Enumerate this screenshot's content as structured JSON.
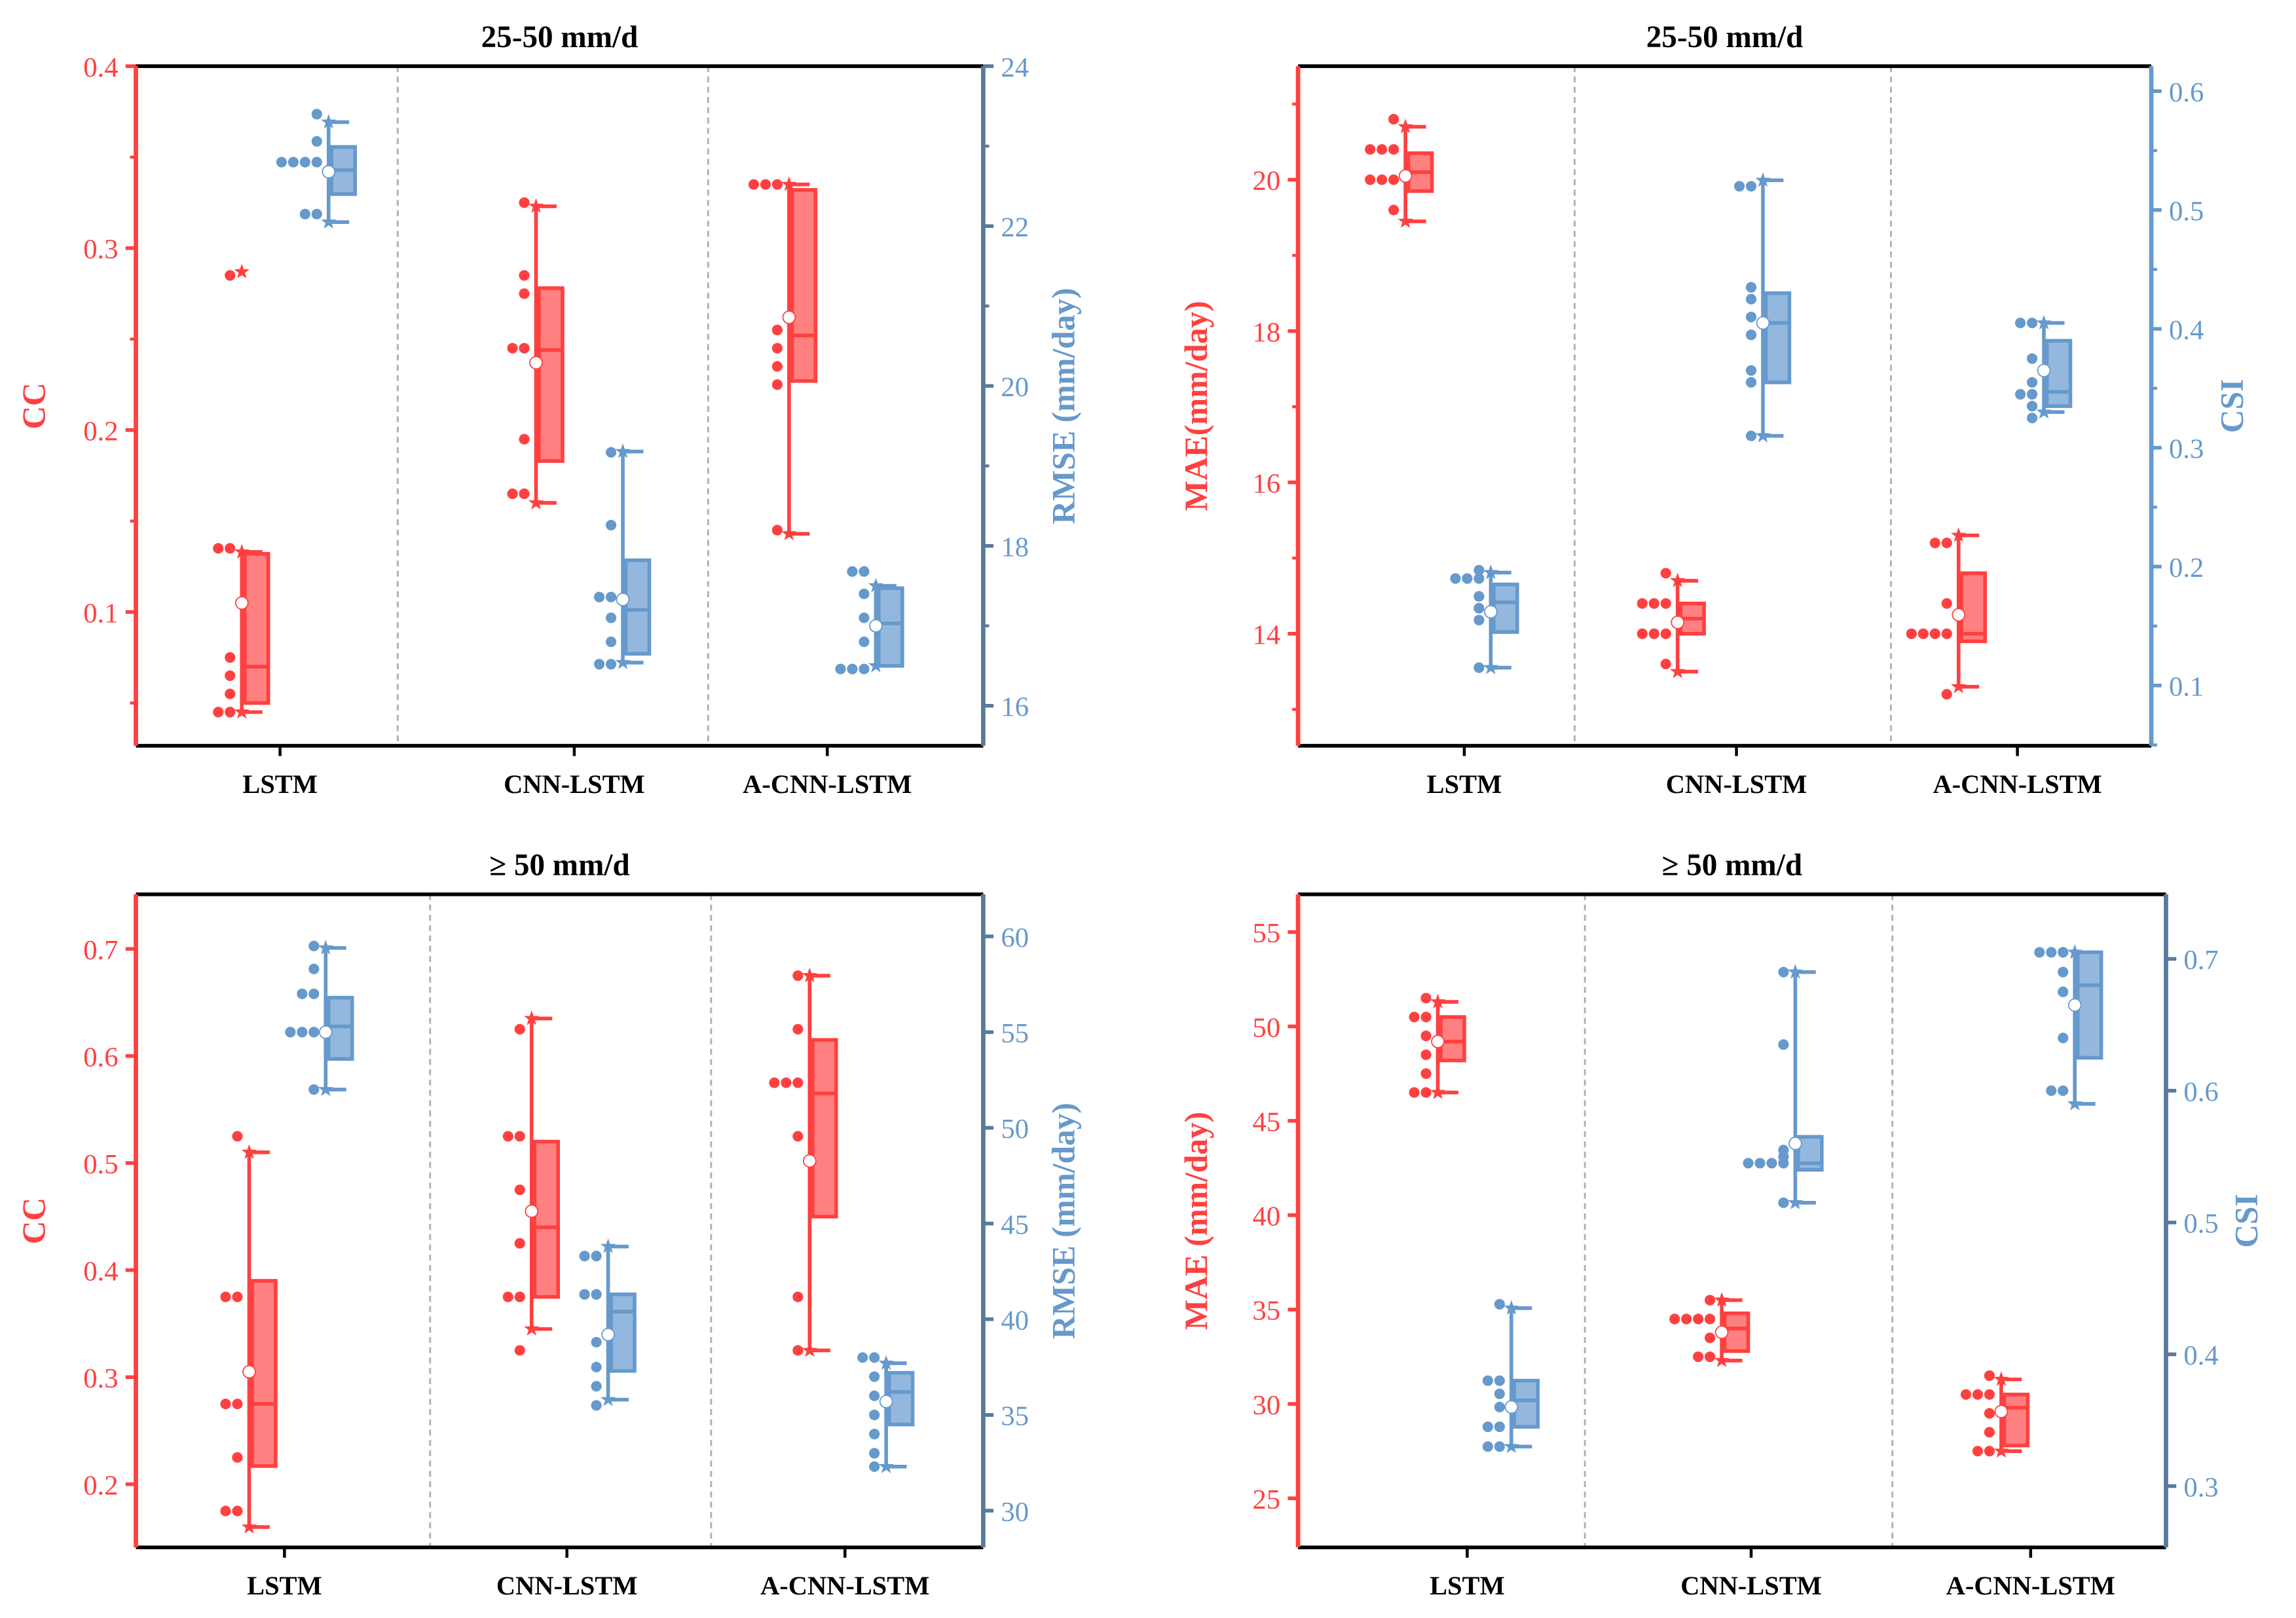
{
  "colors": {
    "red": "#ff4040",
    "red_fill": "#ff8080",
    "blue": "#6699cc",
    "blue_fill": "#94b8dd",
    "right_axis": "#5b7a99"
  },
  "chart_data": [
    {
      "type": "box",
      "title": "25-50 mm/d",
      "categories": [
        "LSTM",
        "CNN-LSTM",
        "A-CNN-LSTM"
      ],
      "left": {
        "label": "CC",
        "ylim": [
          0.0265,
          0.4
        ],
        "ticks": [
          "0.1",
          "0.2",
          "0.3",
          "0.4"
        ],
        "minor_step": 0.05,
        "series": [
          {
            "min": 0.045,
            "q1": 0.05,
            "median": 0.07,
            "q3": 0.132,
            "max": 0.133,
            "mean": 0.105,
            "outliers": [
              0.287
            ],
            "points": [
              0.285,
              0.135,
              0.135,
              0.075,
              0.065,
              0.055,
              0.045,
              0.045
            ]
          },
          {
            "min": 0.16,
            "q1": 0.183,
            "median": 0.244,
            "q3": 0.278,
            "max": 0.323,
            "mean": 0.237,
            "outliers": [],
            "points": [
              0.325,
              0.285,
              0.275,
              0.245,
              0.245,
              0.195,
              0.165,
              0.165
            ]
          },
          {
            "min": 0.143,
            "q1": 0.227,
            "median": 0.252,
            "q3": 0.332,
            "max": 0.335,
            "mean": 0.262,
            "outliers": [],
            "points": [
              0.335,
              0.335,
              0.335,
              0.255,
              0.245,
              0.235,
              0.225,
              0.145
            ]
          }
        ]
      },
      "right": {
        "label": "RMSE (mm/day)",
        "ylim": [
          15.5,
          24
        ],
        "ticks": [
          "16",
          "18",
          "20",
          "22",
          "24"
        ],
        "minor_step": 1,
        "series": [
          {
            "min": 22.05,
            "q1": 22.4,
            "median": 22.7,
            "q3": 22.99,
            "max": 23.3,
            "mean": 22.68,
            "outliers": [],
            "points": [
              23.4,
              23.06,
              22.8,
              22.8,
              22.8,
              22.8,
              22.15,
              22.15
            ]
          },
          {
            "min": 16.54,
            "q1": 16.65,
            "median": 17.2,
            "q3": 17.82,
            "max": 19.18,
            "mean": 17.33,
            "outliers": [],
            "points": [
              19.17,
              18.26,
              17.36,
              17.36,
              17.1,
              16.8,
              16.52,
              16.52
            ]
          },
          {
            "min": 16.5,
            "q1": 16.5,
            "median": 17.03,
            "q3": 17.47,
            "max": 17.5,
            "mean": 17.0,
            "outliers": [],
            "points": [
              17.68,
              17.68,
              17.4,
              17.1,
              16.8,
              16.46,
              16.46,
              16.46
            ]
          }
        ]
      }
    },
    {
      "type": "box",
      "title": "25-50 mm/d",
      "categories": [
        "LSTM",
        "CNN-LSTM",
        "A-CNN-LSTM"
      ],
      "left": {
        "label": "MAE(mm/day)",
        "ylim": [
          12.52,
          21.5
        ],
        "ticks": [
          "14",
          "16",
          "18",
          "20"
        ],
        "minor_step": 1,
        "series": [
          {
            "min": 19.45,
            "q1": 19.85,
            "median": 20.1,
            "q3": 20.35,
            "max": 20.7,
            "mean": 20.05,
            "outliers": [],
            "points": [
              20.8,
              20.4,
              20.4,
              20.4,
              20.0,
              20.0,
              20.0,
              19.6
            ]
          },
          {
            "min": 13.5,
            "q1": 14.0,
            "median": 14.2,
            "q3": 14.4,
            "max": 14.7,
            "mean": 14.15,
            "outliers": [],
            "points": [
              14.8,
              14.4,
              14.4,
              14.4,
              14.0,
              14.0,
              14.0,
              13.6
            ]
          },
          {
            "min": 13.3,
            "q1": 13.9,
            "median": 14.0,
            "q3": 14.8,
            "max": 15.3,
            "mean": 14.25,
            "outliers": [],
            "points": [
              15.2,
              15.2,
              14.4,
              14.0,
              14.0,
              14.0,
              14.0,
              13.2
            ]
          }
        ]
      },
      "right": {
        "label": "CSI",
        "ylim": [
          0.0493,
          0.621
        ],
        "ticks": [
          "0.1",
          "0.2",
          "0.3",
          "0.4",
          "0.5",
          "0.6"
        ],
        "minor_step": 0.05,
        "series": [
          {
            "min": 0.115,
            "q1": 0.145,
            "median": 0.17,
            "q3": 0.185,
            "max": 0.195,
            "mean": 0.162,
            "outliers": [],
            "points": [
              0.197,
              0.19,
              0.19,
              0.19,
              0.175,
              0.165,
              0.155,
              0.115
            ]
          },
          {
            "min": 0.31,
            "q1": 0.355,
            "median": 0.405,
            "q3": 0.43,
            "max": 0.525,
            "mean": 0.405,
            "outliers": [],
            "points": [
              0.52,
              0.52,
              0.435,
              0.425,
              0.41,
              0.395,
              0.365,
              0.355,
              0.31
            ]
          },
          {
            "min": 0.33,
            "q1": 0.335,
            "median": 0.347,
            "q3": 0.39,
            "max": 0.405,
            "mean": 0.365,
            "outliers": [],
            "points": [
              0.405,
              0.405,
              0.375,
              0.355,
              0.345,
              0.345,
              0.335,
              0.325
            ]
          }
        ]
      }
    },
    {
      "type": "box",
      "title": "≥ 50 mm/d",
      "categories": [
        "LSTM",
        "CNN-LSTM",
        "A-CNN-LSTM"
      ],
      "left": {
        "label": "CC",
        "ylim": [
          0.141,
          0.751
        ],
        "ticks": [
          "0.2",
          "0.3",
          "0.4",
          "0.5",
          "0.6",
          "0.7"
        ],
        "minor_step": 0.1,
        "series": [
          {
            "min": 0.16,
            "q1": 0.217,
            "median": 0.275,
            "q3": 0.39,
            "max": 0.51,
            "mean": 0.305,
            "outliers": [],
            "points": [
              0.525,
              0.375,
              0.375,
              0.275,
              0.275,
              0.225,
              0.175,
              0.175
            ]
          },
          {
            "min": 0.345,
            "q1": 0.375,
            "median": 0.44,
            "q3": 0.52,
            "max": 0.635,
            "mean": 0.455,
            "outliers": [],
            "points": [
              0.625,
              0.525,
              0.525,
              0.475,
              0.425,
              0.375,
              0.375,
              0.325
            ]
          },
          {
            "min": 0.325,
            "q1": 0.45,
            "median": 0.565,
            "q3": 0.615,
            "max": 0.675,
            "mean": 0.502,
            "outliers": [],
            "points": [
              0.675,
              0.625,
              0.575,
              0.575,
              0.575,
              0.525,
              0.375,
              0.325
            ]
          }
        ]
      },
      "right": {
        "label": "RMSE (mm/day)",
        "ylim": [
          28.08,
          62.2
        ],
        "ticks": [
          "30",
          "35",
          "40",
          "45",
          "50",
          "55",
          "60"
        ],
        "minor_step": 5,
        "series": [
          {
            "min": 52,
            "q1": 53.6,
            "median": 55.3,
            "q3": 56.8,
            "max": 59.4,
            "mean": 55.0,
            "outliers": [],
            "points": [
              59.5,
              58.3,
              57.0,
              57.0,
              55.0,
              55.0,
              55.0,
              52
            ]
          },
          {
            "min": 35.8,
            "q1": 37.3,
            "median": 40.4,
            "q3": 41.3,
            "max": 43.8,
            "mean": 39.2,
            "outliers": [],
            "points": [
              43.3,
              43.3,
              41.3,
              41.3,
              38.8,
              37.5,
              36.5,
              35.5
            ]
          },
          {
            "min": 32.3,
            "q1": 34.5,
            "median": 36.2,
            "q3": 37.2,
            "max": 37.7,
            "mean": 35.7,
            "outliers": [],
            "points": [
              38,
              38,
              37,
              36,
              35,
              34,
              33,
              32.3
            ]
          }
        ]
      }
    },
    {
      "type": "box",
      "title": "≥ 50 mm/d",
      "categories": [
        "LSTM",
        "CNN-LSTM",
        "A-CNN-LSTM"
      ],
      "left": {
        "label": "MAE (mm/day)",
        "ylim": [
          22.4,
          57.0
        ],
        "ticks": [
          "25",
          "30",
          "35",
          "40",
          "45",
          "50",
          "55"
        ],
        "minor_step": 5,
        "series": [
          {
            "min": 46.5,
            "q1": 48.2,
            "median": 49.2,
            "q3": 50.5,
            "max": 51.3,
            "mean": 49.2,
            "outliers": [],
            "points": [
              51.5,
              50.5,
              50.5,
              49.5,
              48.5,
              47.5,
              46.5,
              46.5
            ]
          },
          {
            "min": 32.3,
            "q1": 32.8,
            "median": 34.0,
            "q3": 34.8,
            "max": 35.5,
            "mean": 33.8,
            "outliers": [],
            "points": [
              35.5,
              34.5,
              34.5,
              34.5,
              34.5,
              33.5,
              32.5,
              32.5
            ]
          },
          {
            "min": 27.5,
            "q1": 27.8,
            "median": 29.8,
            "q3": 30.5,
            "max": 31.3,
            "mean": 29.6,
            "outliers": [],
            "points": [
              31.5,
              30.5,
              30.5,
              30.5,
              29.5,
              28.5,
              27.5,
              27.5
            ]
          }
        ]
      },
      "right": {
        "label": "CSI",
        "ylim": [
          0.2535,
          0.749
        ],
        "ticks": [
          "0.3",
          "0.4",
          "0.5",
          "0.6",
          "0.7"
        ],
        "minor_step": 0.1,
        "series": [
          {
            "min": 0.33,
            "q1": 0.345,
            "median": 0.365,
            "q3": 0.38,
            "max": 0.435,
            "mean": 0.36,
            "outliers": [],
            "points": [
              0.438,
              0.38,
              0.38,
              0.37,
              0.36,
              0.345,
              0.345,
              0.33,
              0.33
            ]
          },
          {
            "min": 0.515,
            "q1": 0.54,
            "median": 0.545,
            "q3": 0.565,
            "max": 0.69,
            "mean": 0.56,
            "outliers": [],
            "points": [
              0.69,
              0.635,
              0.555,
              0.55,
              0.545,
              0.545,
              0.545,
              0.545,
              0.515
            ]
          },
          {
            "min": 0.59,
            "q1": 0.625,
            "median": 0.68,
            "q3": 0.705,
            "max": 0.705,
            "mean": 0.665,
            "outliers": [],
            "points": [
              0.705,
              0.705,
              0.705,
              0.69,
              0.675,
              0.64,
              0.6,
              0.6
            ]
          }
        ]
      }
    }
  ]
}
